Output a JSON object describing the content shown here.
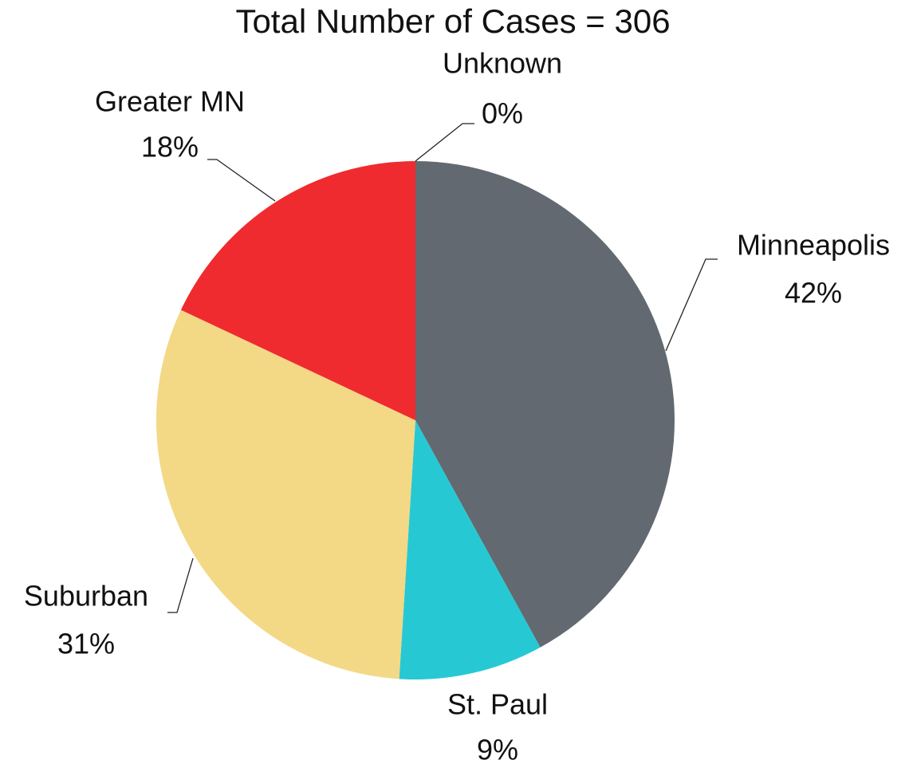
{
  "chart_data": {
    "type": "pie",
    "title": "Total Number of Cases = 306",
    "categories": [
      "Minneapolis",
      "St. Paul",
      "Suburban",
      "Greater MN",
      "Unknown"
    ],
    "values": [
      42,
      9,
      31,
      18,
      0
    ],
    "value_labels": [
      "42%",
      "9%",
      "31%",
      "18%",
      "0%"
    ],
    "colors": [
      "#636970",
      "#26c9d3",
      "#f3d886",
      "#ef2b2f",
      "#8c8c8c"
    ]
  }
}
